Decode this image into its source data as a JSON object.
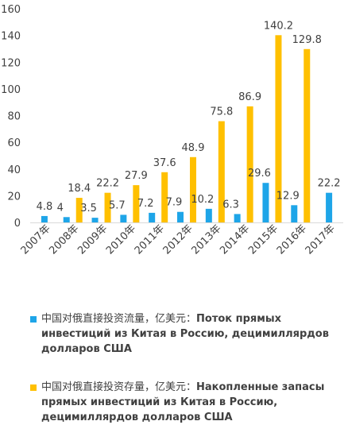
{
  "chart_data": {
    "type": "bar",
    "categories": [
      "2007年",
      "2008年",
      "2009年",
      "2010年",
      "2011年",
      "2012年",
      "2013年",
      "2014年",
      "2015年",
      "2016年",
      "2017年"
    ],
    "series": [
      {
        "name": "中国对俄直接投资流量，亿美元：Поток прямых инвестиций из Китая в Россию, децимиллярдов долларов США",
        "name_cn": "中国对俄直接投资流量，亿美元：",
        "name_ru": "Поток прямых инвестиций из Китая в Россию, децимиллярдов долларов США",
        "color": "#1ea5e8",
        "values": [
          4.8,
          4,
          3.5,
          5.7,
          7.2,
          7.9,
          10.2,
          6.3,
          29.6,
          12.9,
          22.2
        ]
      },
      {
        "name": "中国对俄直接投资存量，亿美元：Накопленные запасы прямых инвестиций из Китая в Россию, децимиллярдов долларов США",
        "name_cn": "中国对俄直接投资存量，亿美元：",
        "name_ru": "Накопленные запасы прямых инвестиций из Китая в Россию, децимиллярдов долларов США",
        "color": "#ffc000",
        "values": [
          null,
          18.4,
          22.2,
          27.9,
          37.6,
          48.9,
          75.8,
          86.9,
          140.2,
          129.8,
          null
        ]
      }
    ],
    "yticks": [
      "0",
      "20",
      "40",
      "60",
      "80",
      "100",
      "120",
      "140",
      "160"
    ],
    "ylim": [
      0,
      160
    ],
    "grid": false,
    "legend_position": "bottom"
  }
}
